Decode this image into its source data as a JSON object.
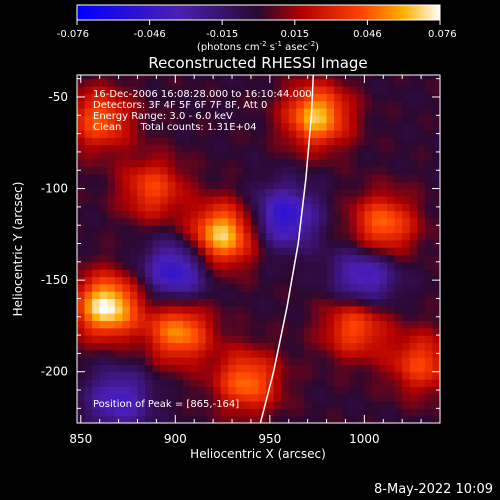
{
  "chart_data": {
    "type": "heatmap",
    "title": "Reconstructed RHESSI Image",
    "xlabel": "Heliocentric X (arcsec)",
    "ylabel": "Heliocentric Y (arcsec)",
    "xlim": [
      848,
      1040
    ],
    "ylim": [
      -228,
      -38
    ],
    "x_ticks": [
      850,
      900,
      950,
      1000
    ],
    "y_ticks": [
      -50,
      -100,
      -150,
      -200
    ],
    "colorbar": {
      "min": -0.076,
      "max": 0.076,
      "ticks": [
        "-0.076",
        "-0.046",
        "-0.015",
        "0.015",
        "0.046",
        "0.076"
      ],
      "label_main": "(photons cm",
      "label_sup1": "-2",
      "label_s": " s",
      "label_sup2": "-1",
      "label_asec": " asec",
      "label_sup3": "-2",
      "label_end": ")"
    },
    "annotations": [
      "16-Dec-2006 16:08:28.000 to 16:10:44.000",
      "Detectors: 3F 4F 5F 6F 7F 8F, Att 0",
      "Energy Range: 3.0 - 6.0 keV",
      "Clean      Total counts: 1.31E+04"
    ],
    "peak_label": "Position of Peak = [865,-164]",
    "peak": [
      865,
      -164
    ],
    "limb": [
      [
        945,
        -228
      ],
      [
        952,
        -200
      ],
      [
        959,
        -165
      ],
      [
        965,
        -130
      ],
      [
        969,
        -95
      ],
      [
        972,
        -60
      ],
      [
        973,
        -38
      ]
    ],
    "sources": [
      {
        "x": 864,
        "y": -164,
        "amp": 0.076
      },
      {
        "x": 925,
        "y": -125,
        "amp": 0.068
      },
      {
        "x": 975,
        "y": -60,
        "amp": 0.064
      },
      {
        "x": 902,
        "y": -178,
        "amp": 0.055
      },
      {
        "x": 1010,
        "y": -120,
        "amp": 0.05
      },
      {
        "x": 860,
        "y": -62,
        "amp": 0.045
      },
      {
        "x": 938,
        "y": -205,
        "amp": 0.05
      },
      {
        "x": 995,
        "y": -175,
        "amp": 0.045
      },
      {
        "x": 888,
        "y": -100,
        "amp": 0.04
      },
      {
        "x": 1030,
        "y": -195,
        "amp": 0.04
      },
      {
        "x": 958,
        "y": -115,
        "amp": -0.05
      },
      {
        "x": 900,
        "y": -145,
        "amp": -0.05
      },
      {
        "x": 1000,
        "y": -148,
        "amp": -0.045
      },
      {
        "x": 870,
        "y": -215,
        "amp": -0.04
      }
    ]
  },
  "footer": {
    "date": "8-May-2022 10:09"
  }
}
